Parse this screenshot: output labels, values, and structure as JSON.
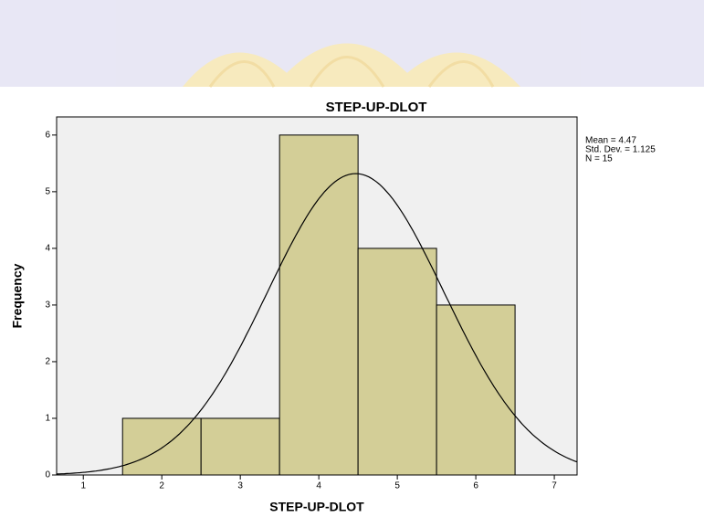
{
  "chart_data": {
    "type": "histogram",
    "title": "STEP-UP-DLOT",
    "x_label": "STEP-UP-DLOT",
    "y_label": "Frequency",
    "bins": [
      1.5,
      2.5,
      3.5,
      4.5,
      5.5,
      6.5
    ],
    "counts": [
      1,
      1,
      6,
      4,
      3
    ],
    "color": "#d3ce97",
    "xlim": [
      0.66,
      7.29
    ],
    "xticks": [
      1,
      2,
      3,
      4,
      5,
      6,
      7
    ],
    "ylim": [
      0,
      6.32
    ],
    "yticks": [
      0,
      1,
      2,
      3,
      4,
      5,
      6
    ],
    "stats": [
      {
        "value": 4.47,
        "label": "Mean = 4.47"
      },
      {
        "value": 1.125,
        "label": "Std. Dev. = 1.125"
      },
      {
        "value": 15,
        "label": "N = 15"
      }
    ],
    "normal_curve": true
  }
}
